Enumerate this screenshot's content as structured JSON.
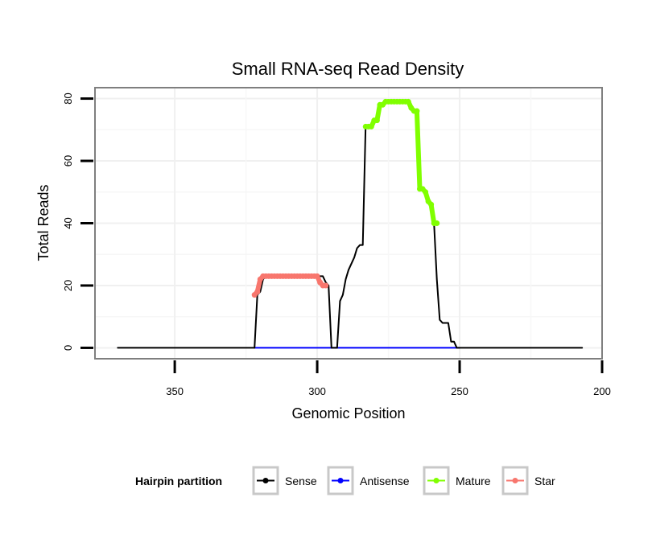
{
  "chart_data": {
    "type": "line",
    "title": "Small RNA-seq Read Density",
    "xlabel": "Genomic Position",
    "ylabel": "Total Reads",
    "xlim": [
      378,
      200
    ],
    "ylim": [
      -3.5,
      83.5
    ],
    "x_ticks": [
      350,
      300,
      250,
      200
    ],
    "x_tick_labels": [
      "350",
      "300",
      "250",
      "200"
    ],
    "y_ticks": [
      0,
      20,
      40,
      60,
      80
    ],
    "y_tick_labels": [
      "0",
      "20",
      "40",
      "60",
      "80"
    ],
    "grid": true,
    "legend": {
      "title": "Hairpin partition",
      "position": "bottom",
      "entries": [
        "Sense",
        "Antisense",
        "Mature",
        "Star"
      ]
    },
    "series": [
      {
        "name": "Sense",
        "color": "#000000",
        "x": [
          370,
          322,
          321,
          320,
          319,
          318,
          317,
          316,
          300,
          299,
          298,
          297,
          296,
          295,
          293,
          292,
          291,
          290,
          289,
          288,
          287,
          286,
          285,
          284,
          283,
          282,
          281,
          280,
          279,
          278,
          277,
          276,
          275,
          274,
          270,
          269,
          268,
          267,
          266,
          265,
          264,
          263,
          262,
          261,
          260,
          259,
          258,
          257,
          256,
          255,
          254,
          253,
          252,
          251,
          250,
          249,
          207
        ],
        "values": [
          0,
          0,
          17,
          18,
          22,
          23,
          23,
          23,
          23,
          23,
          23,
          21,
          20,
          0,
          0,
          15,
          17,
          22,
          25,
          27,
          29,
          32,
          33,
          33,
          71,
          71,
          71,
          73,
          73,
          78,
          78,
          79,
          79,
          79,
          79,
          79,
          79,
          77,
          76,
          76,
          51,
          51,
          50,
          47,
          46,
          40,
          22,
          9,
          8,
          8,
          8,
          2,
          2,
          0,
          0,
          0,
          0
        ]
      },
      {
        "name": "Antisense",
        "color": "#0000ff",
        "x": [
          322,
          250
        ],
        "values": [
          0,
          0
        ]
      },
      {
        "name": "Mature",
        "color": "#80ff00",
        "x": [
          283,
          282,
          281,
          280,
          279,
          278,
          277,
          276,
          275,
          274,
          273,
          272,
          271,
          270,
          269,
          268,
          267,
          266,
          265,
          264,
          263,
          262,
          261,
          260,
          259,
          258
        ],
        "values": [
          71,
          71,
          71,
          73,
          73,
          78,
          78,
          79,
          79,
          79,
          79,
          79,
          79,
          79,
          79,
          79,
          77,
          76,
          76,
          51,
          51,
          50,
          47,
          46,
          40,
          40
        ]
      },
      {
        "name": "Star",
        "color": "#f8766d",
        "x": [
          322,
          321,
          320,
          319,
          318,
          317,
          316,
          315,
          314,
          313,
          312,
          311,
          310,
          309,
          308,
          307,
          306,
          305,
          304,
          303,
          302,
          301,
          300,
          299,
          298,
          297
        ],
        "values": [
          17,
          18,
          22,
          23,
          23,
          23,
          23,
          23,
          23,
          23,
          23,
          23,
          23,
          23,
          23,
          23,
          23,
          23,
          23,
          23,
          23,
          23,
          23,
          21,
          20,
          20
        ]
      }
    ]
  }
}
